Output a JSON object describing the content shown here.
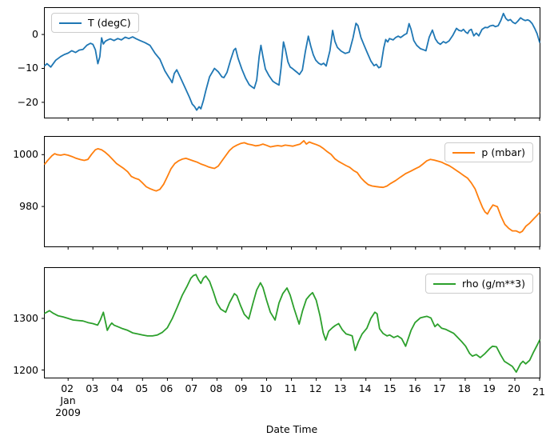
{
  "figure": {
    "background": "#ffffff",
    "spine_color": "#000000",
    "tick_color": "#000000"
  },
  "xaxis": {
    "label": "Date Time",
    "xlim": [
      1.06,
      21
    ],
    "month_year_sublabels": [
      "Jan",
      "2009"
    ],
    "ticks": [
      {
        "day": 2,
        "label": "02"
      },
      {
        "day": 3,
        "label": "03"
      },
      {
        "day": 4,
        "label": "04"
      },
      {
        "day": 5,
        "label": "05"
      },
      {
        "day": 6,
        "label": "06"
      },
      {
        "day": 7,
        "label": "07"
      },
      {
        "day": 8,
        "label": "08"
      },
      {
        "day": 9,
        "label": "09"
      },
      {
        "day": 10,
        "label": "10"
      },
      {
        "day": 11,
        "label": "11"
      },
      {
        "day": 12,
        "label": "12"
      },
      {
        "day": 13,
        "label": "13"
      },
      {
        "day": 14,
        "label": "14"
      },
      {
        "day": 15,
        "label": "15"
      },
      {
        "day": 16,
        "label": "16"
      },
      {
        "day": 17,
        "label": "17"
      },
      {
        "day": 18,
        "label": "18"
      },
      {
        "day": 19,
        "label": "19"
      },
      {
        "day": 20,
        "label": "20"
      },
      {
        "day": 21,
        "label": "21",
        "dy": 4
      }
    ]
  },
  "chart_data": [
    {
      "type": "line",
      "legend": "T (degC)",
      "legend_position": "upper-left",
      "color": "#1f77b4",
      "ylim": [
        -24.5,
        7.8
      ],
      "yticks": [
        {
          "value": 0,
          "label": "0"
        },
        {
          "value": -10,
          "label": "−10"
        },
        {
          "value": -20,
          "label": "−20"
        }
      ],
      "x": [
        1.06,
        1.15,
        1.3,
        1.5,
        1.7,
        1.85,
        2.0,
        2.15,
        2.3,
        2.45,
        2.6,
        2.75,
        2.9,
        3.0,
        3.1,
        3.2,
        3.28,
        3.35,
        3.42,
        3.5,
        3.6,
        3.7,
        3.85,
        4.0,
        4.15,
        4.3,
        4.45,
        4.6,
        4.75,
        4.9,
        5.1,
        5.3,
        5.5,
        5.7,
        5.9,
        6.05,
        6.13,
        6.19,
        6.28,
        6.38,
        6.5,
        6.67,
        6.89,
        7.0,
        7.1,
        7.18,
        7.28,
        7.35,
        7.45,
        7.55,
        7.7,
        7.9,
        8.05,
        8.2,
        8.28,
        8.4,
        8.55,
        8.68,
        8.75,
        8.85,
        9.0,
        9.15,
        9.3,
        9.4,
        9.5,
        9.6,
        9.7,
        9.77,
        9.85,
        9.95,
        10.1,
        10.25,
        10.38,
        10.5,
        10.58,
        10.68,
        10.76,
        10.86,
        10.95,
        11.05,
        11.15,
        11.25,
        11.32,
        11.44,
        11.56,
        11.68,
        11.78,
        11.88,
        11.98,
        12.1,
        12.2,
        12.3,
        12.4,
        12.55,
        12.66,
        12.75,
        12.85,
        13.0,
        13.17,
        13.33,
        13.48,
        13.6,
        13.68,
        13.8,
        13.93,
        14.05,
        14.2,
        14.33,
        14.42,
        14.52,
        14.6,
        14.72,
        14.8,
        14.88,
        14.95,
        15.1,
        15.2,
        15.3,
        15.4,
        15.55,
        15.65,
        15.74,
        15.82,
        15.93,
        16.05,
        16.2,
        16.32,
        16.42,
        16.55,
        16.68,
        16.8,
        16.9,
        17.0,
        17.12,
        17.22,
        17.35,
        17.5,
        17.65,
        17.75,
        17.85,
        17.93,
        18.02,
        18.1,
        18.17,
        18.25,
        18.35,
        18.45,
        18.55,
        18.68,
        18.8,
        18.9,
        19.0,
        19.12,
        19.22,
        19.33,
        19.44,
        19.54,
        19.64,
        19.73,
        19.82,
        19.92,
        20.02,
        20.12,
        20.23,
        20.33,
        20.42,
        20.52,
        20.6,
        20.7,
        20.8,
        20.9,
        21.0
      ],
      "y": [
        -9.2,
        -8.6,
        -9.6,
        -7.6,
        -6.5,
        -5.9,
        -5.5,
        -4.8,
        -5.3,
        -4.6,
        -4.4,
        -3.2,
        -2.6,
        -2.9,
        -4.5,
        -8.6,
        -6.5,
        -1.0,
        -2.8,
        -2.0,
        -1.6,
        -1.3,
        -1.8,
        -1.2,
        -1.6,
        -0.8,
        -1.2,
        -0.7,
        -1.3,
        -1.8,
        -2.4,
        -3.2,
        -5.5,
        -7.3,
        -10.7,
        -12.5,
        -13.4,
        -14.2,
        -11.5,
        -10.4,
        -12.3,
        -15.0,
        -18.5,
        -20.5,
        -21.3,
        -22.3,
        -21.3,
        -21.9,
        -19.5,
        -16.5,
        -12.5,
        -10.0,
        -11.0,
        -12.5,
        -12.7,
        -11.2,
        -7.5,
        -4.6,
        -4.1,
        -7.0,
        -10.2,
        -12.8,
        -14.8,
        -15.4,
        -15.9,
        -13.5,
        -6.5,
        -3.2,
        -6.5,
        -10.2,
        -12.2,
        -13.8,
        -14.4,
        -14.9,
        -10.0,
        -2.2,
        -4.5,
        -8.1,
        -9.6,
        -10.1,
        -10.7,
        -11.3,
        -11.8,
        -10.5,
        -5.0,
        -0.5,
        -3.5,
        -6.0,
        -7.6,
        -8.5,
        -8.9,
        -8.5,
        -9.3,
        -4.8,
        1.2,
        -2.0,
        -3.8,
        -4.9,
        -5.6,
        -5.2,
        -1.0,
        3.3,
        2.6,
        -0.9,
        -3.2,
        -5.3,
        -7.8,
        -9.2,
        -8.8,
        -9.8,
        -9.5,
        -4.0,
        -1.5,
        -2.2,
        -1.2,
        -1.6,
        -0.9,
        -0.5,
        -0.9,
        -0.1,
        0.3,
        3.2,
        1.5,
        -1.8,
        -3.2,
        -4.2,
        -4.5,
        -4.8,
        -0.8,
        1.3,
        -1.3,
        -2.4,
        -2.9,
        -2.1,
        -2.5,
        -1.9,
        -0.3,
        1.8,
        1.2,
        1.0,
        1.5,
        0.7,
        0.3,
        1.2,
        1.5,
        -0.4,
        0.4,
        -0.4,
        1.5,
        2.1,
        2.0,
        2.5,
        2.7,
        2.3,
        2.6,
        4.2,
        6.2,
        4.7,
        4.1,
        4.4,
        3.6,
        3.2,
        3.9,
        4.9,
        4.4,
        4.1,
        4.3,
        4.0,
        3.2,
        1.8,
        0.2,
        -2.3
      ]
    },
    {
      "type": "line",
      "legend": "p (mbar)",
      "legend_position": "upper-right",
      "color": "#ff7f0e",
      "ylim": [
        964.6,
        1006.9
      ],
      "yticks": [
        {
          "value": 1000,
          "label": "1000"
        },
        {
          "value": 980,
          "label": "980"
        }
      ],
      "x": [
        1.06,
        1.2,
        1.35,
        1.46,
        1.55,
        1.7,
        1.85,
        2.0,
        2.15,
        2.3,
        2.5,
        2.65,
        2.8,
        2.95,
        3.1,
        3.2,
        3.35,
        3.5,
        3.65,
        3.8,
        3.95,
        4.1,
        4.25,
        4.4,
        4.55,
        4.7,
        4.85,
        5.0,
        5.15,
        5.3,
        5.45,
        5.55,
        5.7,
        5.85,
        6.0,
        6.15,
        6.3,
        6.45,
        6.6,
        6.75,
        6.9,
        7.05,
        7.2,
        7.35,
        7.5,
        7.65,
        7.8,
        7.9,
        8.05,
        8.2,
        8.35,
        8.5,
        8.65,
        8.8,
        8.95,
        9.1,
        9.25,
        9.4,
        9.55,
        9.7,
        9.85,
        10.0,
        10.15,
        10.3,
        10.45,
        10.6,
        10.75,
        10.9,
        11.05,
        11.2,
        11.35,
        11.5,
        11.6,
        11.72,
        11.85,
        12.0,
        12.15,
        12.3,
        12.45,
        12.6,
        12.75,
        12.9,
        13.05,
        13.2,
        13.35,
        13.5,
        13.65,
        13.8,
        13.95,
        14.1,
        14.25,
        14.4,
        14.55,
        14.7,
        14.85,
        15.0,
        15.2,
        15.4,
        15.6,
        15.8,
        16.0,
        16.15,
        16.3,
        16.45,
        16.6,
        16.75,
        16.9,
        17.05,
        17.2,
        17.35,
        17.5,
        17.65,
        17.8,
        17.95,
        18.1,
        18.25,
        18.4,
        18.55,
        18.7,
        18.8,
        18.9,
        19.0,
        19.12,
        19.2,
        19.3,
        19.45,
        19.6,
        19.75,
        19.9,
        20.05,
        20.2,
        20.3,
        20.45,
        20.6,
        20.75,
        20.9,
        21.0
      ],
      "y": [
        996.4,
        998.0,
        999.6,
        1000.4,
        1000.0,
        999.8,
        1000.1,
        999.8,
        999.3,
        998.7,
        998.1,
        997.8,
        998.2,
        1000.2,
        1001.9,
        1002.3,
        1001.9,
        1000.9,
        999.6,
        998.1,
        996.6,
        995.6,
        994.6,
        993.4,
        991.6,
        990.9,
        990.4,
        989.1,
        987.6,
        986.9,
        986.3,
        986.0,
        986.6,
        988.6,
        991.6,
        994.6,
        996.6,
        997.6,
        998.3,
        998.6,
        998.1,
        997.6,
        997.1,
        996.4,
        995.9,
        995.3,
        994.9,
        994.7,
        995.6,
        997.6,
        999.6,
        1001.6,
        1002.9,
        1003.7,
        1004.3,
        1004.6,
        1004.1,
        1003.8,
        1003.4,
        1003.6,
        1004.1,
        1003.6,
        1003.0,
        1003.3,
        1003.5,
        1003.3,
        1003.7,
        1003.5,
        1003.3,
        1003.7,
        1004.1,
        1005.4,
        1004.1,
        1004.9,
        1004.4,
        1003.9,
        1003.3,
        1002.3,
        1001.1,
        1000.1,
        998.4,
        997.4,
        996.6,
        995.8,
        995.1,
        993.9,
        993.1,
        991.1,
        989.6,
        988.4,
        987.9,
        987.7,
        987.5,
        987.4,
        987.9,
        988.9,
        990.0,
        991.4,
        992.7,
        993.6,
        994.6,
        995.3,
        996.4,
        997.6,
        998.2,
        997.9,
        997.5,
        997.1,
        996.4,
        995.8,
        994.9,
        993.9,
        992.9,
        991.9,
        990.9,
        989.1,
        986.8,
        983.1,
        979.6,
        977.9,
        977.1,
        978.9,
        980.6,
        980.3,
        979.9,
        976.1,
        973.1,
        971.6,
        970.6,
        970.6,
        969.9,
        970.4,
        972.4,
        973.6,
        975.1,
        976.6,
        977.6
      ]
    },
    {
      "type": "line",
      "legend": "rho (g/m**3)",
      "legend_position": "upper-right",
      "color": "#2ca02c",
      "ylim": [
        1185.3,
        1397.7
      ],
      "yticks": [
        {
          "value": 1300,
          "label": "1300"
        },
        {
          "value": 1200,
          "label": "1200"
        }
      ],
      "x": [
        1.06,
        1.25,
        1.4,
        1.6,
        1.8,
        2.0,
        2.2,
        2.4,
        2.6,
        2.8,
        3.0,
        3.19,
        3.3,
        3.42,
        3.52,
        3.58,
        3.68,
        3.76,
        3.85,
        4.0,
        4.2,
        4.4,
        4.6,
        4.8,
        5.0,
        5.2,
        5.4,
        5.6,
        5.8,
        6.0,
        6.2,
        6.4,
        6.6,
        6.8,
        6.95,
        7.05,
        7.15,
        7.25,
        7.35,
        7.45,
        7.55,
        7.7,
        7.85,
        8.0,
        8.15,
        8.35,
        8.5,
        8.7,
        8.8,
        8.95,
        9.1,
        9.28,
        9.45,
        9.6,
        9.75,
        9.85,
        10.0,
        10.15,
        10.34,
        10.5,
        10.65,
        10.82,
        10.95,
        11.1,
        11.31,
        11.45,
        11.6,
        11.74,
        11.85,
        12.0,
        12.15,
        12.28,
        12.38,
        12.5,
        12.65,
        12.76,
        12.9,
        13.05,
        13.2,
        13.35,
        13.45,
        13.57,
        13.7,
        13.85,
        14.04,
        14.2,
        14.36,
        14.45,
        14.55,
        14.69,
        14.85,
        14.96,
        15.12,
        15.28,
        15.44,
        15.6,
        15.82,
        15.98,
        16.19,
        16.35,
        16.46,
        16.62,
        16.78,
        16.89,
        17.05,
        17.21,
        17.37,
        17.54,
        17.7,
        17.86,
        18.02,
        18.18,
        18.29,
        18.45,
        18.61,
        18.8,
        19.0,
        19.1,
        19.26,
        19.42,
        19.58,
        19.74,
        19.9,
        20.06,
        20.23,
        20.33,
        20.44,
        20.6,
        20.76,
        20.92,
        21.0
      ],
      "y": [
        1310,
        1315,
        1310,
        1305,
        1303,
        1300,
        1297,
        1296,
        1295,
        1292,
        1290,
        1287,
        1297,
        1312,
        1290,
        1277,
        1286,
        1291,
        1287,
        1284,
        1280,
        1277,
        1272,
        1270,
        1268,
        1266,
        1266,
        1268,
        1273,
        1282,
        1300,
        1322,
        1345,
        1363,
        1378,
        1383,
        1385,
        1375,
        1368,
        1378,
        1382,
        1372,
        1352,
        1330,
        1318,
        1312,
        1330,
        1348,
        1344,
        1325,
        1308,
        1299,
        1330,
        1355,
        1369,
        1360,
        1335,
        1312,
        1297,
        1330,
        1348,
        1359,
        1345,
        1320,
        1289,
        1315,
        1337,
        1345,
        1350,
        1335,
        1305,
        1272,
        1258,
        1275,
        1282,
        1286,
        1290,
        1278,
        1270,
        1268,
        1266,
        1238,
        1255,
        1270,
        1281,
        1300,
        1312,
        1309,
        1280,
        1271,
        1266,
        1268,
        1263,
        1266,
        1261,
        1246,
        1277,
        1292,
        1301,
        1303,
        1304,
        1301,
        1284,
        1289,
        1281,
        1279,
        1275,
        1271,
        1263,
        1255,
        1246,
        1232,
        1227,
        1230,
        1224,
        1232,
        1242,
        1246,
        1245,
        1230,
        1217,
        1212,
        1207,
        1196,
        1212,
        1217,
        1212,
        1219,
        1235,
        1250,
        1258
      ]
    }
  ]
}
